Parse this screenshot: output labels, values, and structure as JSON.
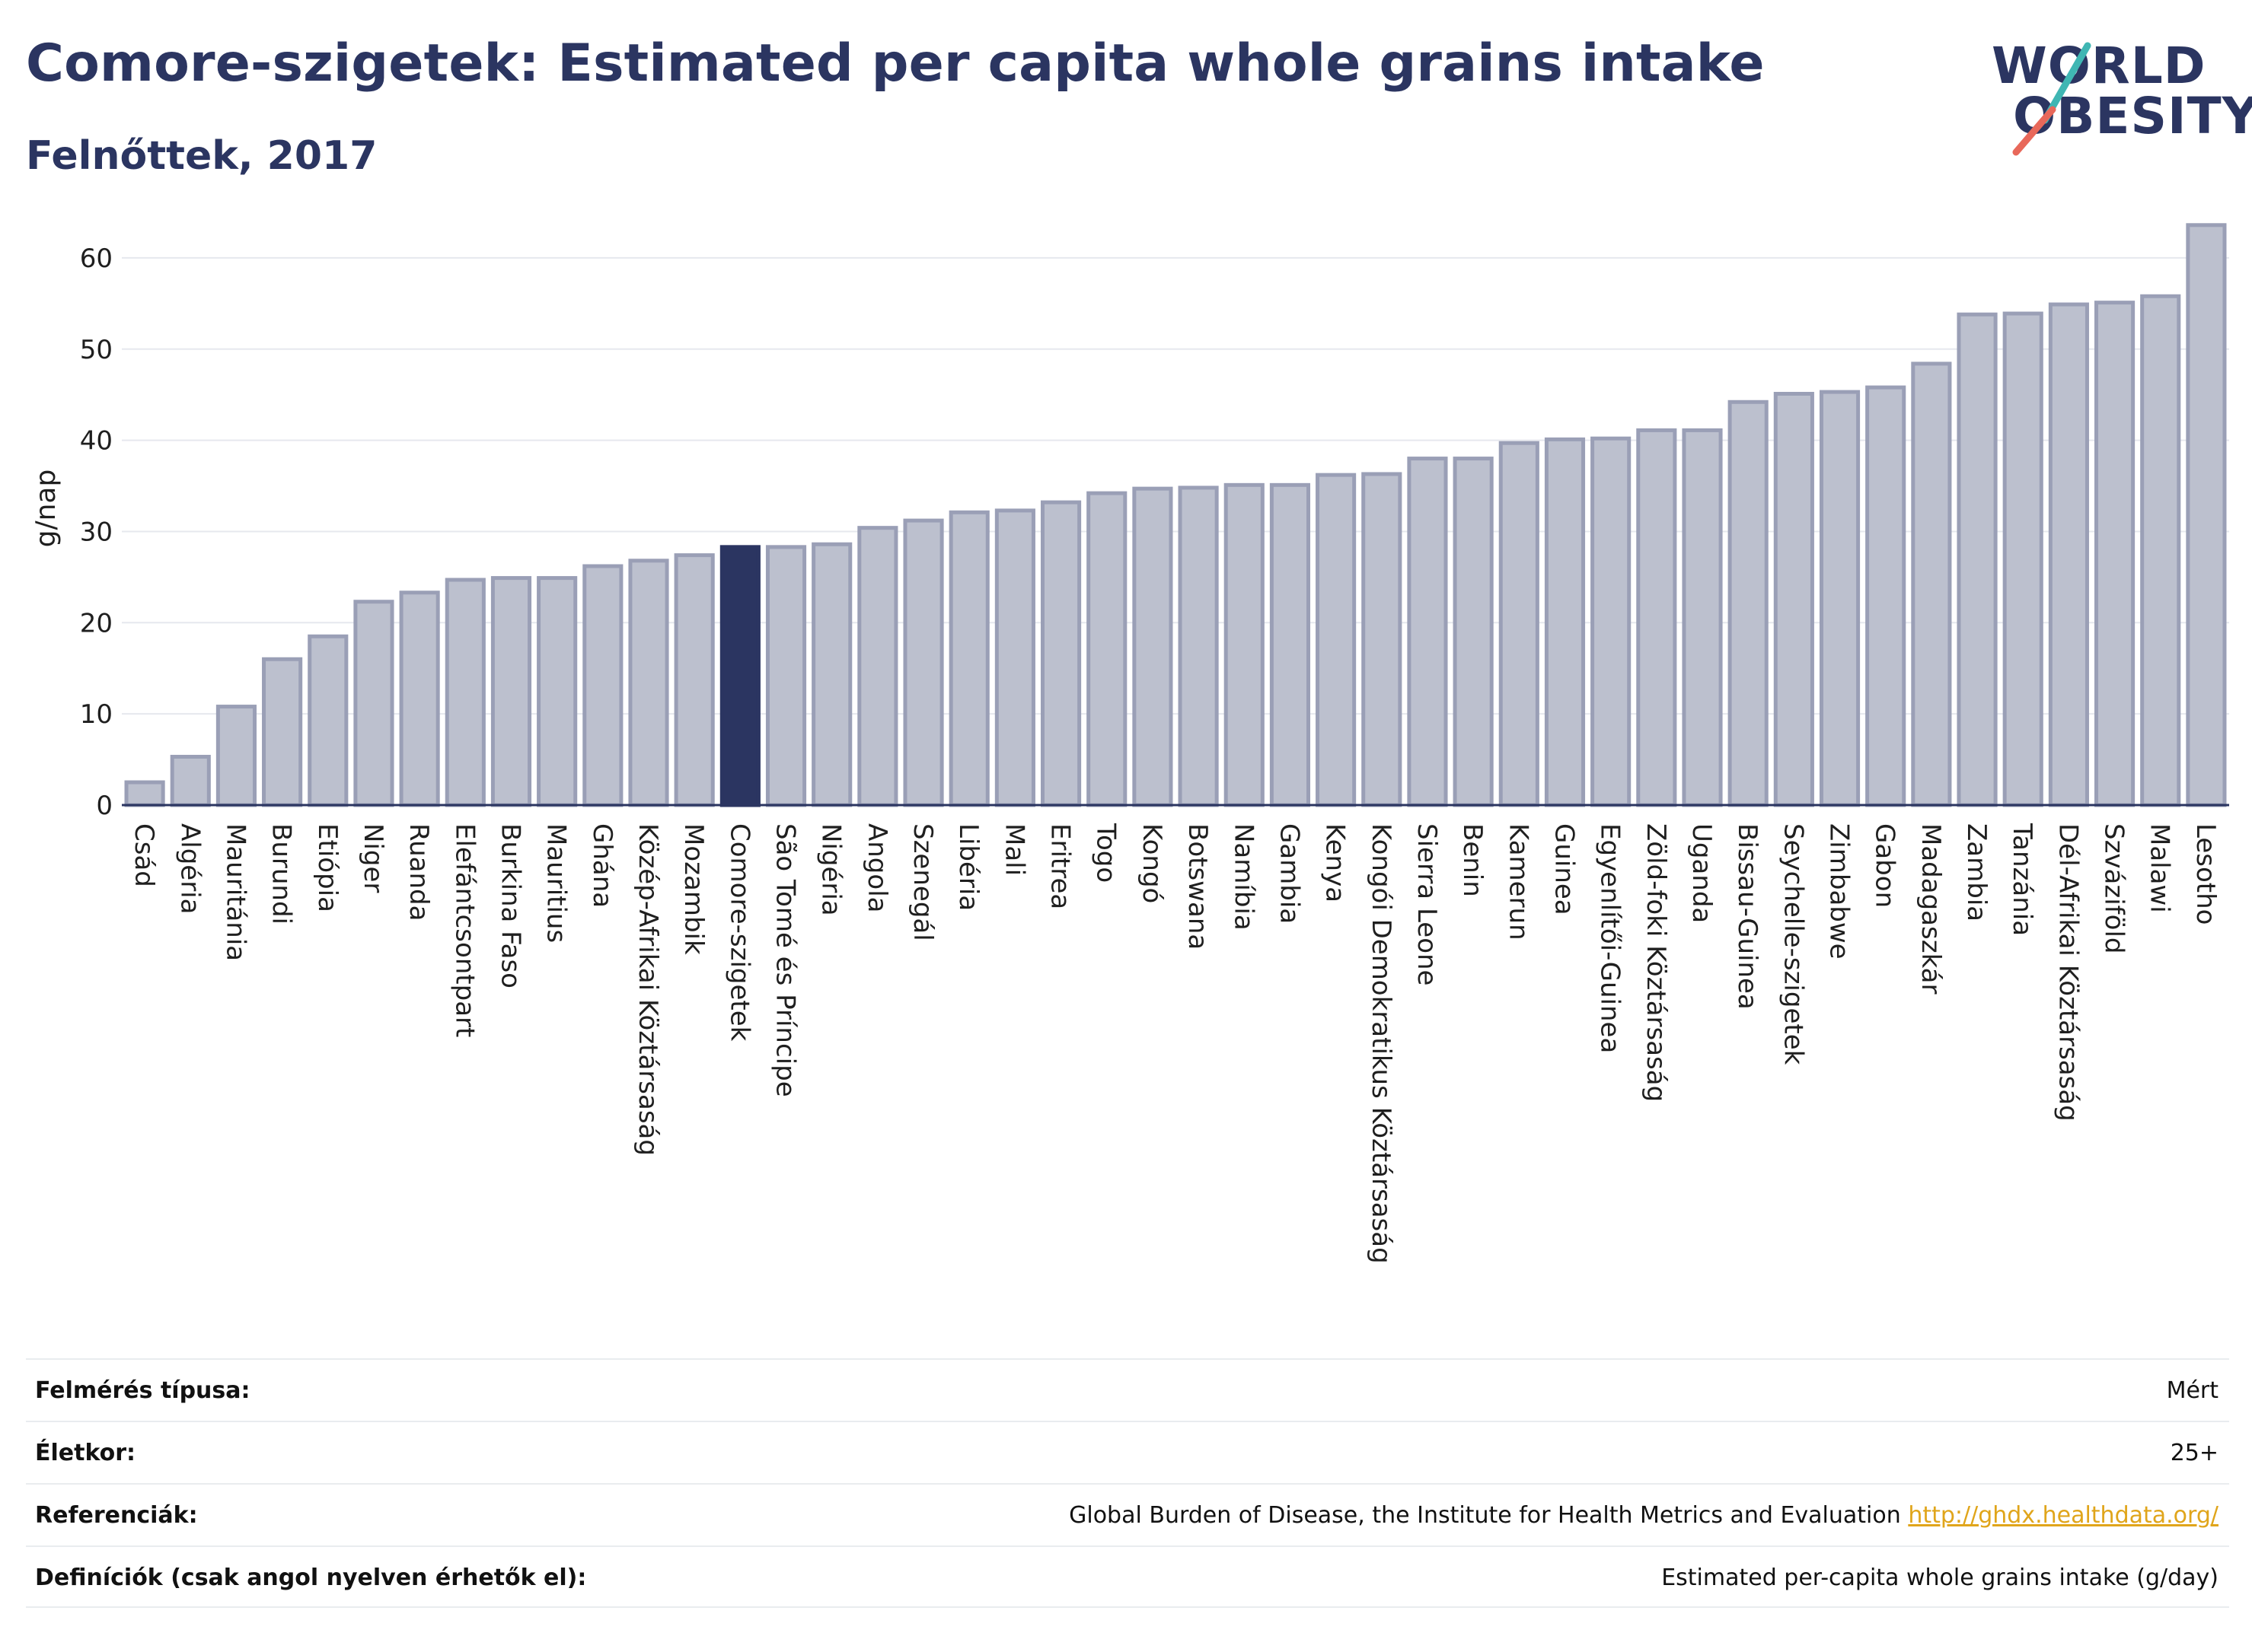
{
  "header": {
    "title": "Comore-szigetek: Estimated per capita whole grains intake",
    "subtitle": "Felnőttek, 2017"
  },
  "logo": {
    "line1": "WORLD",
    "line2": "OBESITY"
  },
  "colors": {
    "bar": "#bcc0ce",
    "bar_border": "#9a9fb6",
    "highlight": "#2b3561",
    "text": "#2b3561",
    "link": "#e0a51b",
    "logo_slash_teal": "#3fb6b3",
    "logo_slash_red": "#e8685a"
  },
  "chart_data": {
    "type": "bar",
    "ylabel": "g/nap",
    "ylim": [
      0,
      65
    ],
    "yticks": [
      0,
      10,
      20,
      30,
      40,
      50,
      60
    ],
    "grid": true,
    "highlight": "Comore-szigetek",
    "categories": [
      "Csád",
      "Algéria",
      "Mauritánia",
      "Burundi",
      "Etiópia",
      "Niger",
      "Ruanda",
      "Elefántcsontpart",
      "Burkina Faso",
      "Mauritius",
      "Ghána",
      "Közép-Afrikai Köztársaság",
      "Mozambik",
      "Comore-szigetek",
      "São Tomé és Príncipe",
      "Nigéria",
      "Angola",
      "Szenegál",
      "Libéria",
      "Mali",
      "Eritrea",
      "Togo",
      "Kongó",
      "Botswana",
      "Namíbia",
      "Gambia",
      "Kenya",
      "Kongói Demokratikus Köztársaság",
      "Sierra Leone",
      "Benin",
      "Kamerun",
      "Guinea",
      "Egyenlítői-Guinea",
      "Zöld-foki Köztársaság",
      "Uganda",
      "Bissau-Guinea",
      "Seychelle-szigetek",
      "Zimbabwe",
      "Gabon",
      "Madagaszkár",
      "Zambia",
      "Tanzánia",
      "Dél-Afrikai Köztársaság",
      "Szváziföld",
      "Malawi",
      "Lesotho"
    ],
    "values": [
      2.5,
      5.3,
      10.8,
      16.0,
      18.5,
      22.3,
      23.3,
      24.7,
      24.9,
      24.9,
      26.2,
      26.8,
      27.4,
      28.3,
      28.3,
      28.6,
      30.4,
      31.2,
      32.1,
      32.3,
      33.2,
      34.2,
      34.7,
      34.8,
      35.1,
      35.1,
      36.2,
      36.3,
      38.0,
      38.0,
      39.7,
      40.1,
      40.2,
      41.1,
      41.1,
      44.2,
      45.1,
      45.3,
      45.8,
      48.4,
      53.8,
      53.9,
      54.9,
      55.1,
      55.8,
      63.6
    ]
  },
  "info": [
    {
      "key": "Felmérés típusa:",
      "value": "Mért"
    },
    {
      "key": "Életkor:",
      "value": "25+"
    },
    {
      "key": "Referenciák:",
      "value": "Global Burden of Disease, the Institute for Health Metrics and Evaluation",
      "link": "http://ghdx.healthdata.org/"
    },
    {
      "key": "Definíciók (csak angol nyelven érhetők el):",
      "value": "Estimated per-capita whole grains intake (g/day)"
    }
  ]
}
